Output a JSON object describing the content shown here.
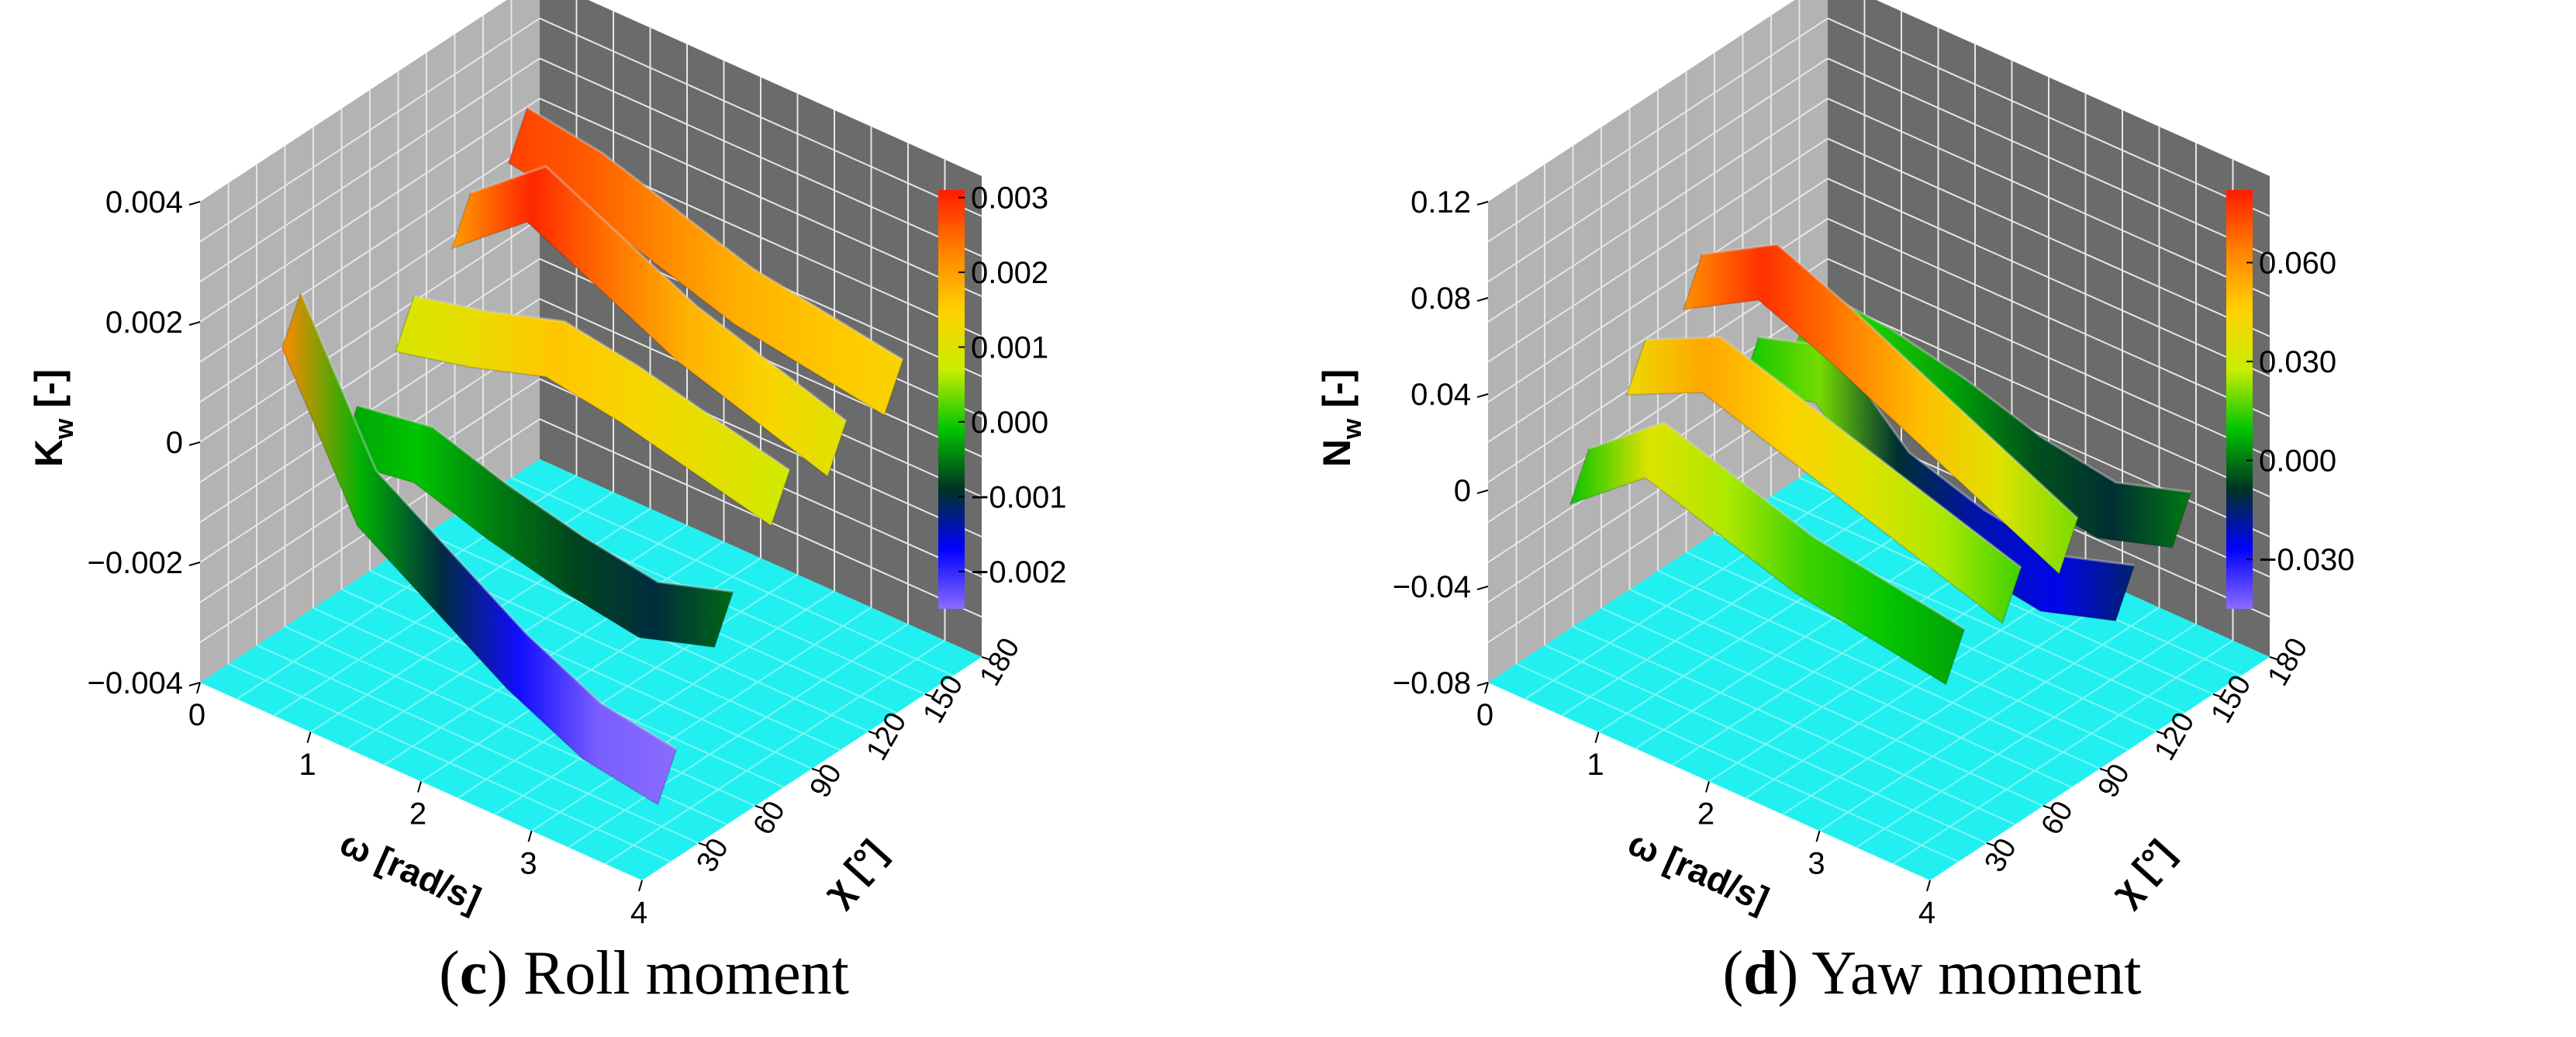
{
  "captions": [
    {
      "letter": "c",
      "text": "Roll moment"
    },
    {
      "letter": "d",
      "text": "Yaw moment"
    }
  ],
  "chart_data": [
    {
      "type": "surface3d",
      "zlabel": "K_w [-]",
      "zlabel_main": "K",
      "zlabel_sub": "w",
      "zlabel_unit": " [-]",
      "xlabel": "ω [rad/s]",
      "ylabel": "χ [°]",
      "z_ticks": [
        "0.004",
        "0.002",
        "0",
        "−0.002",
        "−0.004"
      ],
      "x_ticks": [
        "0",
        "1",
        "2",
        "3",
        "4"
      ],
      "y_ticks": [
        "30",
        "60",
        "90",
        "120",
        "150",
        "180"
      ],
      "colorbar_ticks": [
        "0.003",
        "0.002",
        "0.001",
        "0.000",
        "−0.001",
        "−0.002"
      ],
      "x_range": [
        0,
        4
      ],
      "y_range": [
        0,
        180
      ],
      "z_range": [
        -0.004,
        0.004
      ],
      "color_range": [
        -0.0025,
        0.0031
      ],
      "colormap": [
        "#8a6cff",
        "#0000ff",
        "#003322",
        "#00c400",
        "#c8ee00",
        "#ffd000",
        "#ff8000",
        "#ff1a00"
      ],
      "background_colors": {
        "floor": "#22f0f0",
        "left_wall": "#b3b3b3",
        "back_wall": "#6b6b6b"
      },
      "grid": true,
      "surface_ridges": [
        {
          "chi": 30,
          "values": [
            0.0022,
            -0.0002,
            -0.001,
            -0.0018,
            -0.0024,
            -0.0026
          ]
        },
        {
          "chi": 60,
          "values": [
            -0.0003,
            -0.0001,
            -0.0005,
            -0.0008,
            -0.001,
            -0.0006
          ]
        },
        {
          "chi": 90,
          "values": [
            0.0009,
            0.0012,
            0.0016,
            0.0014,
            0.0011,
            0.0008
          ]
        },
        {
          "chi": 120,
          "values": [
            0.002,
            0.003,
            0.0024,
            0.0018,
            0.0014,
            0.001
          ]
        },
        {
          "chi": 150,
          "values": [
            0.0028,
            0.0026,
            0.0022,
            0.0018,
            0.0016,
            0.0014
          ]
        }
      ]
    },
    {
      "type": "surface3d",
      "zlabel": "N_w [-]",
      "zlabel_main": "N",
      "zlabel_sub": "w",
      "zlabel_unit": " [-]",
      "xlabel": "ω [rad/s]",
      "ylabel": "χ [°]",
      "z_ticks": [
        "0.12",
        "0.08",
        "0.04",
        "0",
        "−0.04",
        "−0.08"
      ],
      "x_ticks": [
        "0",
        "1",
        "2",
        "3",
        "4"
      ],
      "y_ticks": [
        "30",
        "60",
        "90",
        "120",
        "150",
        "180"
      ],
      "colorbar_ticks": [
        "0.060",
        "0.030",
        "0.000",
        "−0.030"
      ],
      "x_range": [
        0,
        4
      ],
      "y_range": [
        0,
        180
      ],
      "z_range": [
        -0.08,
        0.12
      ],
      "color_range": [
        -0.045,
        0.082
      ],
      "colormap": [
        "#8a6cff",
        "#0000ff",
        "#003322",
        "#00c400",
        "#c8ee00",
        "#ffd000",
        "#ff8000",
        "#ff1a00"
      ],
      "background_colors": {
        "floor": "#22f0f0",
        "left_wall": "#b3b3b3",
        "back_wall": "#6b6b6b"
      },
      "grid": true,
      "surface_ridges": [
        {
          "chi": 30,
          "values": [
            0.01,
            0.035,
            0.025,
            0.015,
            0.01,
            0.005
          ]
        },
        {
          "chi": 60,
          "values": [
            0.04,
            0.055,
            0.045,
            0.035,
            0.025,
            0.015
          ]
        },
        {
          "chi": 90,
          "values": [
            0.06,
            0.078,
            0.065,
            0.05,
            0.035,
            0.02
          ]
        },
        {
          "chi": 120,
          "values": [
            0.01,
            0.02,
            -0.01,
            -0.02,
            -0.025,
            -0.015
          ]
        },
        {
          "chi": 150,
          "values": [
            0.015,
            0.012,
            0.005,
            -0.005,
            -0.01,
            0.0
          ]
        }
      ]
    }
  ]
}
